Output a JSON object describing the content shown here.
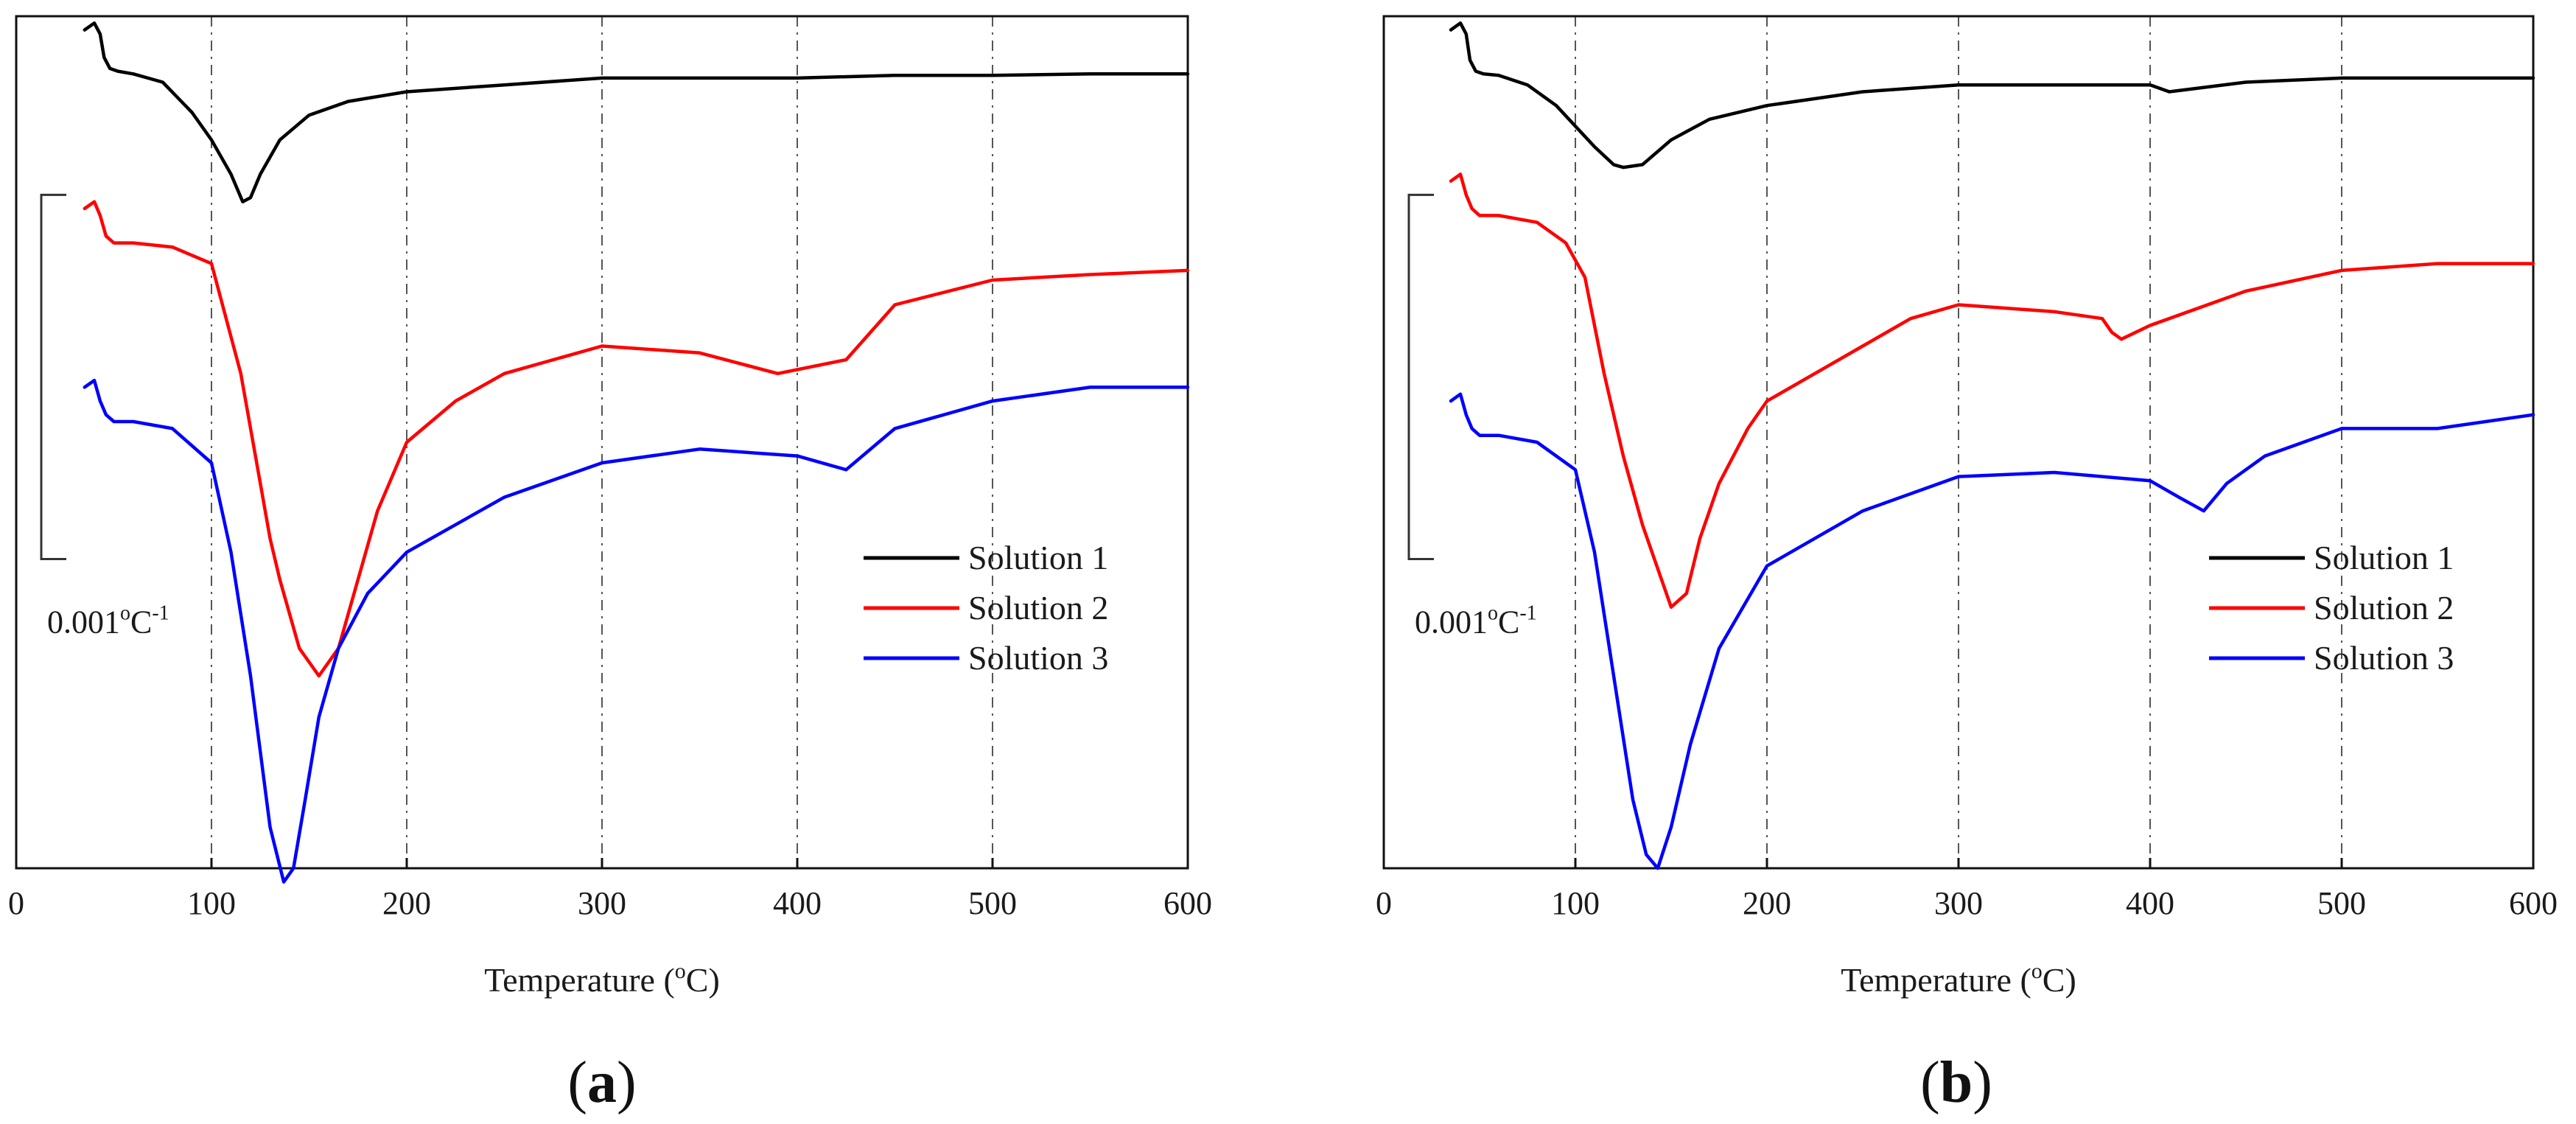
{
  "chart_data": [
    {
      "panel_label": "a",
      "type": "line",
      "xlabel": "Temperature (",
      "xlabel_sup": "o",
      "xlabel_tail": "C)",
      "xlim": [
        0,
        600
      ],
      "x_ticks": [
        0,
        100,
        200,
        300,
        400,
        500,
        600
      ],
      "ylim": [
        -0.0061,
        0.0001
      ],
      "y_axis_shown": false,
      "grid": "vertical dash-dot at 100, 200, 300, 400, 500",
      "legend_position": "lower-right",
      "scale_bar": {
        "value": 0.001,
        "text": "0.001",
        "sup1": "o",
        "unit": "C",
        "sup2": "-1"
      },
      "series": [
        {
          "name": "Solution 1",
          "color": "#000000",
          "x": [
            35,
            40,
            43,
            45,
            48,
            52,
            60,
            75,
            90,
            100,
            110,
            116,
            120,
            125,
            135,
            150,
            170,
            200,
            250,
            300,
            350,
            400,
            450,
            500,
            550,
            600
          ],
          "y": [
            0,
            5e-05,
            -3e-05,
            -0.0002,
            -0.00028,
            -0.0003,
            -0.00032,
            -0.00038,
            -0.0006,
            -0.0008,
            -0.00105,
            -0.00125,
            -0.00122,
            -0.00105,
            -0.0008,
            -0.00062,
            -0.00052,
            -0.00045,
            -0.0004,
            -0.00035,
            -0.00035,
            -0.00035,
            -0.00033,
            -0.00033,
            -0.00032,
            -0.00032
          ]
        },
        {
          "name": "Solution 2",
          "color": "#ff0000",
          "x": [
            35,
            40,
            43,
            46,
            50,
            60,
            80,
            100,
            115,
            125,
            130,
            135,
            145,
            155,
            165,
            175,
            185,
            200,
            225,
            250,
            300,
            350,
            390,
            425,
            450,
            500,
            550,
            600
          ],
          "y": [
            -0.0013,
            -0.00125,
            -0.00135,
            -0.0015,
            -0.00155,
            -0.00155,
            -0.00158,
            -0.0017,
            -0.0025,
            -0.0033,
            -0.0037,
            -0.004,
            -0.0045,
            -0.0047,
            -0.0045,
            -0.004,
            -0.0035,
            -0.003,
            -0.0027,
            -0.0025,
            -0.0023,
            -0.00235,
            -0.0025,
            -0.0024,
            -0.002,
            -0.00182,
            -0.00178,
            -0.00175
          ]
        },
        {
          "name": "Solution 3",
          "color": "#0000ff",
          "x": [
            35,
            40,
            43,
            46,
            50,
            60,
            80,
            100,
            110,
            120,
            130,
            137,
            142,
            148,
            155,
            165,
            180,
            200,
            250,
            300,
            350,
            400,
            425,
            450,
            500,
            550,
            600
          ],
          "y": [
            -0.0026,
            -0.00255,
            -0.0027,
            -0.0028,
            -0.00285,
            -0.00285,
            -0.0029,
            -0.00315,
            -0.0038,
            -0.0047,
            -0.0058,
            -0.0062,
            -0.0061,
            -0.0056,
            -0.005,
            -0.0045,
            -0.0041,
            -0.0038,
            -0.0034,
            -0.00315,
            -0.00305,
            -0.0031,
            -0.0032,
            -0.0029,
            -0.0027,
            -0.0026,
            -0.0026
          ]
        }
      ]
    },
    {
      "panel_label": "b",
      "type": "line",
      "xlabel": "Temperature (",
      "xlabel_sup": "o",
      "xlabel_tail": "C)",
      "xlim": [
        0,
        600
      ],
      "x_ticks": [
        0,
        100,
        200,
        300,
        400,
        500,
        600
      ],
      "ylim": [
        -0.0061,
        0.0001
      ],
      "y_axis_shown": false,
      "grid": "vertical dash-dot at 100, 200, 300, 400, 500",
      "legend_position": "lower-right",
      "scale_bar": {
        "value": 0.001,
        "text": "0.001",
        "sup1": "o",
        "unit": "C",
        "sup2": "-1"
      },
      "series": [
        {
          "name": "Solution 1",
          "color": "#000000",
          "x": [
            35,
            40,
            43,
            45,
            48,
            52,
            60,
            75,
            90,
            100,
            110,
            120,
            125,
            135,
            150,
            170,
            200,
            250,
            300,
            350,
            400,
            410,
            450,
            500,
            550,
            600
          ],
          "y": [
            0,
            5e-05,
            -3e-05,
            -0.00022,
            -0.0003,
            -0.00032,
            -0.00033,
            -0.0004,
            -0.00055,
            -0.0007,
            -0.00085,
            -0.00098,
            -0.001,
            -0.00098,
            -0.0008,
            -0.00065,
            -0.00055,
            -0.00045,
            -0.0004,
            -0.0004,
            -0.0004,
            -0.00045,
            -0.00038,
            -0.00035,
            -0.00035,
            -0.00035
          ]
        },
        {
          "name": "Solution 2",
          "color": "#ff0000",
          "x": [
            35,
            40,
            43,
            46,
            50,
            60,
            80,
            95,
            105,
            115,
            125,
            135,
            145,
            150,
            158,
            165,
            175,
            190,
            200,
            225,
            250,
            275,
            300,
            350,
            375,
            380,
            385,
            400,
            450,
            500,
            550,
            600
          ],
          "y": [
            -0.0011,
            -0.00105,
            -0.0012,
            -0.0013,
            -0.00135,
            -0.00135,
            -0.0014,
            -0.00155,
            -0.0018,
            -0.0025,
            -0.0031,
            -0.0036,
            -0.004,
            -0.0042,
            -0.0041,
            -0.0037,
            -0.0033,
            -0.0029,
            -0.0027,
            -0.0025,
            -0.0023,
            -0.0021,
            -0.002,
            -0.00205,
            -0.0021,
            -0.0022,
            -0.00225,
            -0.00215,
            -0.0019,
            -0.00175,
            -0.0017,
            -0.0017
          ]
        },
        {
          "name": "Solution 3",
          "color": "#0000ff",
          "x": [
            35,
            40,
            43,
            46,
            50,
            60,
            80,
            100,
            110,
            120,
            130,
            137,
            143,
            150,
            160,
            175,
            200,
            250,
            300,
            350,
            400,
            415,
            428,
            440,
            460,
            500,
            550,
            600
          ],
          "y": [
            -0.0027,
            -0.00265,
            -0.0028,
            -0.0029,
            -0.00295,
            -0.00295,
            -0.003,
            -0.0032,
            -0.0038,
            -0.0047,
            -0.0056,
            -0.006,
            -0.0061,
            -0.0058,
            -0.0052,
            -0.0045,
            -0.0039,
            -0.0035,
            -0.00325,
            -0.00322,
            -0.00328,
            -0.0034,
            -0.0035,
            -0.0033,
            -0.0031,
            -0.0029,
            -0.0029,
            -0.0028
          ]
        }
      ]
    }
  ]
}
